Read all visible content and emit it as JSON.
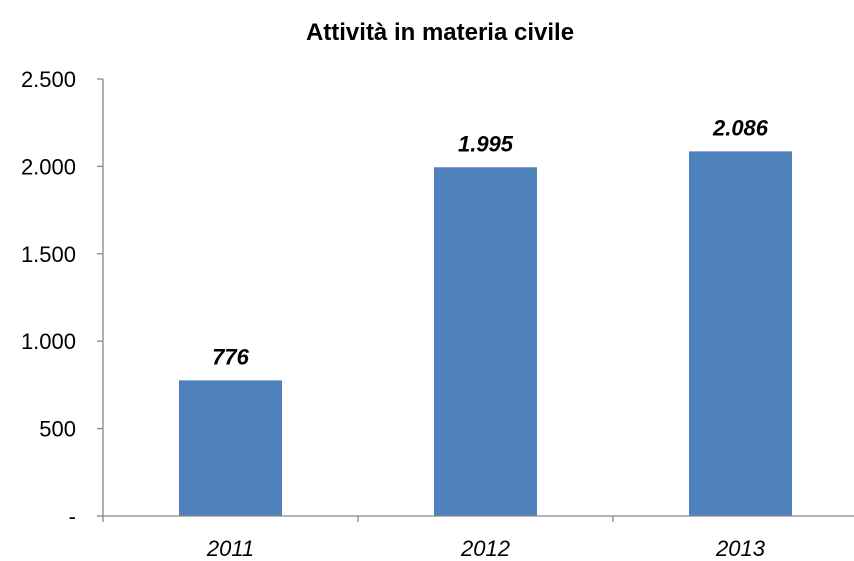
{
  "chart_data": {
    "type": "bar",
    "title": "Attività in materia civile",
    "categories": [
      "2011",
      "2012",
      "2013"
    ],
    "values": [
      776,
      1995,
      2086
    ],
    "value_labels": [
      "776",
      "1.995",
      "2.086"
    ],
    "ylim": [
      0,
      2500
    ],
    "yticks": [
      0,
      500,
      1000,
      1500,
      2000,
      2500
    ],
    "ytick_labels": [
      "-",
      "500",
      "1.000",
      "1.500",
      "2.000",
      "2.500"
    ],
    "xlabel": "",
    "ylabel": "",
    "grid": false,
    "legend": "none",
    "bar_color": "#4F81BD"
  }
}
